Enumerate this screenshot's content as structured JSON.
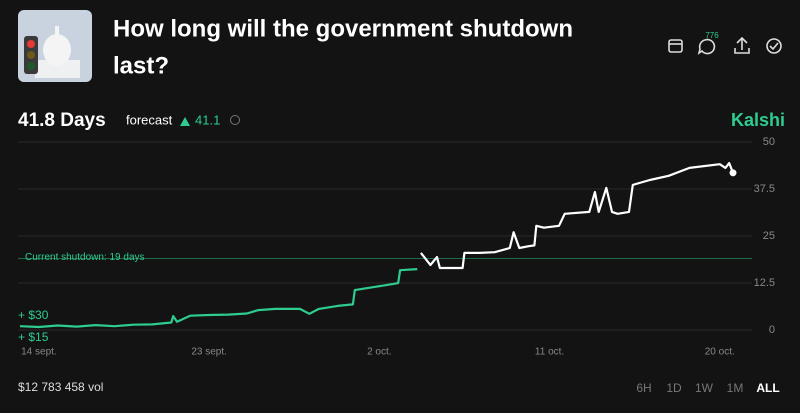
{
  "header": {
    "title_lines": [
      "How long will the government shutdown",
      "last?"
    ],
    "comment_count": 776
  },
  "summary": {
    "value_label": "41.8 Days",
    "forecast_label": "forecast",
    "change": 41.1,
    "brand": "Kalshi"
  },
  "chart_data": {
    "type": "line",
    "x": [
      13.0,
      14.0,
      15.0,
      16.0,
      17.0,
      18.0,
      19.0,
      20.0,
      21.0,
      21.1,
      21.3,
      22.0,
      23.0,
      24.0,
      25.0,
      25.6,
      26.5,
      27.8,
      28.3,
      28.8,
      29.8,
      30.6,
      30.7,
      31.7,
      32.7,
      33.0,
      33.1,
      34.0,
      34.2,
      34.7,
      35.05,
      35.2,
      36.4,
      36.5,
      37.3,
      38.1,
      38.9,
      39.1,
      39.4,
      39.9,
      40.2,
      40.3,
      40.7,
      41.5,
      41.8,
      43.1,
      43.4,
      43.6,
      44.0,
      44.3,
      44.6,
      45.2,
      45.4,
      46.3,
      47.3,
      48.4,
      50.0,
      50.3,
      50.5,
      50.7
    ],
    "series": [
      {
        "color": "#2ecc8f",
        "values": [
          1.0,
          0.8,
          1.2,
          0.9,
          1.3,
          1.0,
          1.4,
          1.5,
          2.0,
          3.7,
          2.2,
          3.8,
          4.0,
          4.1,
          4.4,
          5.3,
          5.6,
          5.6,
          4.3,
          5.6,
          6.4,
          6.8,
          10.6,
          11.4,
          12.2,
          12.5,
          15.9,
          16.2,
          null,
          null,
          null,
          null,
          null,
          null,
          null,
          null,
          null,
          null,
          null,
          null,
          null,
          null,
          null,
          null,
          null,
          null,
          null,
          null,
          null,
          null,
          null,
          null,
          null,
          null,
          null,
          null,
          null,
          null,
          null,
          null
        ]
      },
      {
        "color": "#ffffff",
        "values": [
          null,
          null,
          null,
          null,
          null,
          null,
          null,
          null,
          null,
          null,
          null,
          null,
          null,
          null,
          null,
          null,
          null,
          null,
          null,
          null,
          null,
          null,
          null,
          null,
          null,
          null,
          null,
          null,
          20.5,
          17.3,
          19.4,
          16.5,
          16.5,
          20.5,
          20.5,
          20.7,
          21.8,
          26.0,
          21.8,
          22.3,
          22.5,
          27.7,
          27.2,
          27.7,
          30.9,
          31.4,
          36.7,
          31.4,
          37.8,
          31.4,
          30.9,
          31.4,
          38.6,
          39.9,
          41.0,
          43.1,
          44.1,
          43.1,
          44.4,
          41.8
        ]
      }
    ],
    "xlim": [
      13.0,
      50.7
    ],
    "xticks": [
      {
        "value": 14,
        "label": "14 sept."
      },
      {
        "value": 23,
        "label": "23 sept."
      },
      {
        "value": 32,
        "label": "2 oct."
      },
      {
        "value": 41,
        "label": "11 oct."
      },
      {
        "value": 50,
        "label": "20 oct."
      }
    ],
    "ylim": [
      0,
      50
    ],
    "yticks": [
      0,
      12.5,
      25,
      37.5,
      50
    ],
    "grid": true,
    "annotation": {
      "label": "Current shutdown: 19 days",
      "value": 19,
      "color": "#1f6b47"
    },
    "payout_labels": [
      "+ $30",
      "+ $15"
    ]
  },
  "footer": {
    "volume": "$12 783 458 vol",
    "ranges": [
      "6H",
      "1D",
      "1W",
      "1M",
      "ALL"
    ],
    "active_range": "ALL"
  }
}
